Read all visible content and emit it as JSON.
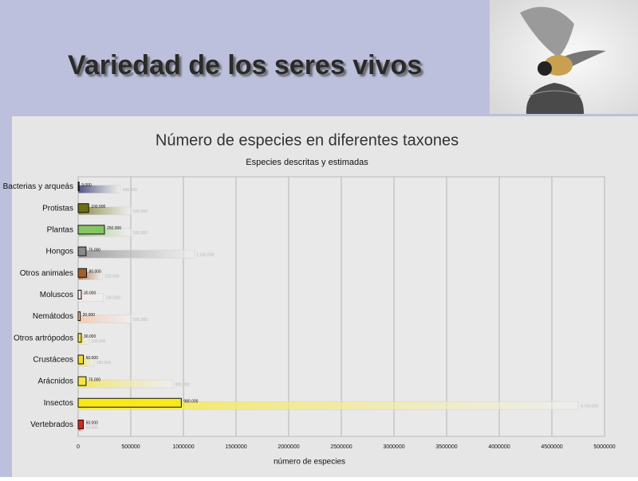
{
  "slide_title": "Variedad de los seres vivos",
  "chart_data": {
    "type": "bar",
    "orientation": "horizontal",
    "title": "Número de especies en diferentes taxones",
    "subtitle": "Especies descritas y estimadas",
    "x_label": "número de especies",
    "categories": [
      "Bacterias y arqueás",
      "Protistas",
      "Plantas",
      "Hongos",
      "Otros animales",
      "Moluscos",
      "Nemátodos",
      "Otros artrópodos",
      "Crustáceos",
      "Arácnidos",
      "Insectos",
      "Vertebrados"
    ],
    "colors": [
      "#2a2a6e",
      "#6e6e12",
      "#86c466",
      "#8a8a8a",
      "#a0602c",
      "#fbe6e6",
      "#f6c4a4",
      "#f4e44a",
      "#f2d830",
      "#f4e44a",
      "#f8e81c",
      "#d02a20"
    ],
    "series": [
      {
        "values": [
          9000,
          100000,
          250000,
          75000,
          80000,
          30000,
          20000,
          30000,
          50000,
          75000,
          980000,
          50000
        ],
        "value_labels": [
          "9.000",
          "100.000",
          "250.000",
          "75.000",
          "80.000",
          "30.000",
          "20.000",
          "30.000",
          "50.000",
          "75.000",
          "980.000",
          "50.000"
        ]
      },
      {
        "values": [
          400000,
          500000,
          500000,
          1100000,
          230000,
          240000,
          500000,
          100000,
          150000,
          900000,
          4750000,
          50000
        ],
        "value_labels": [
          "400.000",
          "500.000",
          "500.000",
          "1.100.000",
          "230.000",
          "240.000",
          "500.000",
          "100.000",
          "150.000",
          "900.000",
          "4.750.000",
          "50.000"
        ]
      }
    ],
    "xlim": [
      0,
      5000000
    ],
    "xticks": [
      0,
      500000,
      1000000,
      1500000,
      2000000,
      2500000,
      3000000,
      3500000,
      4000000,
      4500000,
      5000000
    ],
    "grid": true
  }
}
